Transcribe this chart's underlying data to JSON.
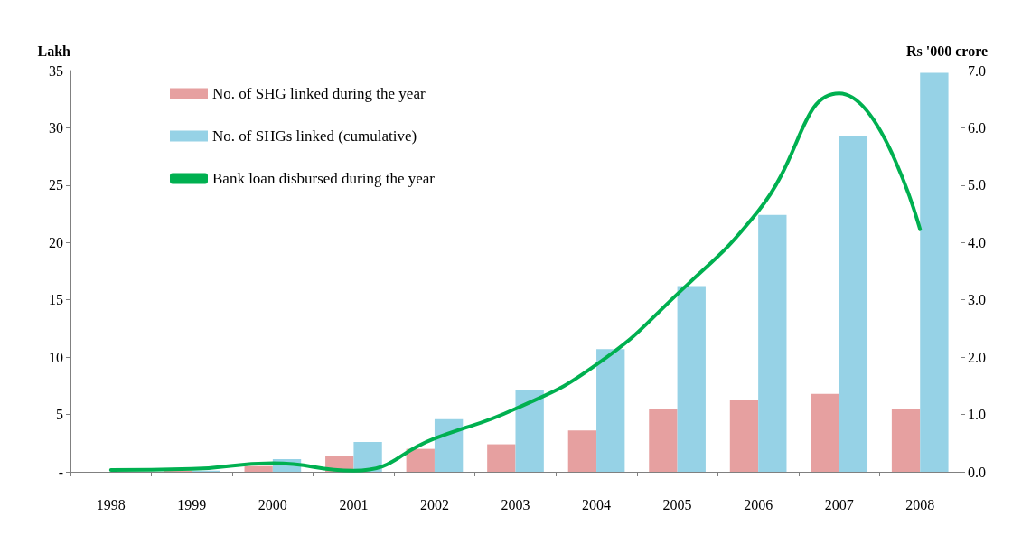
{
  "chart_data": {
    "type": "bar",
    "ylabel": "Lakh",
    "y2label": "Rs '000 crore",
    "categories": [
      "1998",
      "1999",
      "2000",
      "2001",
      "2002",
      "2003",
      "2004",
      "2005",
      "2006",
      "2007",
      "2008"
    ],
    "series": [
      {
        "name": "No. of SHG linked during the year",
        "color": "#e6a0a0",
        "values": [
          0,
          0.1,
          0.5,
          1.4,
          2.0,
          2.4,
          3.6,
          5.5,
          6.3,
          6.8,
          5.5
        ]
      },
      {
        "name": "No. of SHGs linked (cumulative)",
        "color": "#96d2e6",
        "values": [
          0,
          0.1,
          1.1,
          2.6,
          4.6,
          7.1,
          10.7,
          16.2,
          22.4,
          29.3,
          34.8
        ]
      },
      {
        "name": "Bank loan disbursed during the year",
        "type": "line",
        "axis": "y2",
        "color": "#00b050",
        "values": [
          0.03,
          0.05,
          0.15,
          0.02,
          0.58,
          1.1,
          1.87,
          3.1,
          4.55,
          6.6,
          4.23
        ]
      }
    ],
    "ylim": [
      0,
      35
    ],
    "yticks": [
      {
        "value": 0,
        "label": "-"
      },
      5,
      10,
      15,
      20,
      25,
      30,
      35
    ],
    "y2lim": [
      0,
      7
    ],
    "y2ticks": [
      {
        "value": 0,
        "label": "0.0"
      },
      {
        "value": 1,
        "label": "1.0"
      },
      {
        "value": 2,
        "label": "2.0"
      },
      {
        "value": 3,
        "label": "3.0"
      },
      {
        "value": 4,
        "label": "4.0"
      },
      {
        "value": 5,
        "label": "5.0"
      },
      {
        "value": 6,
        "label": "6.0"
      },
      {
        "value": 7,
        "label": "7.0"
      }
    ],
    "grid": false,
    "legend": "top left",
    "marker": "none"
  }
}
